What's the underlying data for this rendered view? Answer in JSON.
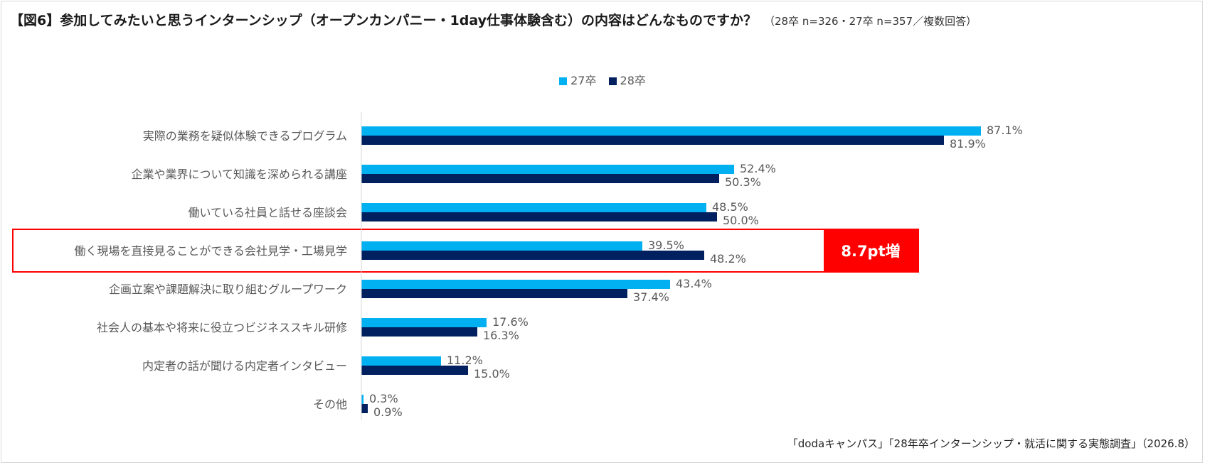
{
  "title": {
    "main": "【図6】参加してみたいと思うインターンシップ（オープンカンパニー・1day仕事体験含む）の内容はどんなものですか？",
    "sub": "（28卒 n=326・27卒 n=357／複数回答）"
  },
  "source": "「dodaキャンパス」「28年卒インターンシップ・就活に関する実態調査」（2026.8）",
  "colors": {
    "s27": "#00b0f0",
    "s28": "#002060",
    "highlight": "#ff0000"
  },
  "chart_data": {
    "type": "bar",
    "orientation": "horizontal",
    "categories": [
      "実際の業務を疑似体験できるプログラム",
      "企業や業界について知識を深められる講座",
      "働いている社員と話せる座談会",
      "働く現場を直接見ることができる会社見学・工場見学",
      "企画立案や課題解決に取り組むグループワーク",
      "社会人の基本や将来に役立つビジネススキル研修",
      "内定者の話が聞ける内定者インタビュー",
      "その他"
    ],
    "series": [
      {
        "name": "27卒",
        "values": [
          87.1,
          52.4,
          48.5,
          39.5,
          43.4,
          17.6,
          11.2,
          0.3
        ]
      },
      {
        "name": "28卒",
        "values": [
          81.9,
          50.3,
          50.0,
          48.2,
          37.4,
          16.3,
          15.0,
          0.9
        ]
      }
    ],
    "value_labels": {
      "27卒": [
        "87.1%",
        "52.4%",
        "48.5%",
        "39.5%",
        "43.4%",
        "17.6%",
        "11.2%",
        "0.3%"
      ],
      "28卒": [
        "81.9%",
        "50.3%",
        "50.0%",
        "48.2%",
        "37.4%",
        "16.3%",
        "15.0%",
        "0.9%"
      ]
    },
    "xlim": [
      0,
      100
    ],
    "legend": "top-center",
    "grid": false,
    "highlight": {
      "category_index": 3,
      "annotation": "8.7pt増"
    }
  }
}
